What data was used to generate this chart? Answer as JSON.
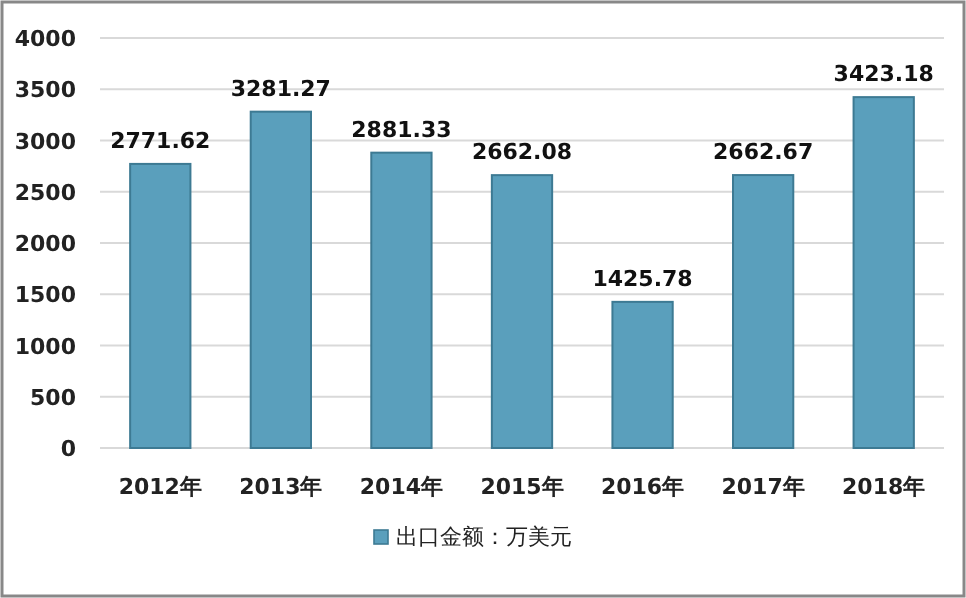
{
  "chart_data": {
    "type": "bar",
    "categories": [
      "2012年",
      "2013年",
      "2014年",
      "2015年",
      "2016年",
      "2017年",
      "2018年"
    ],
    "series": [
      {
        "name": "出口金额：万美元",
        "color": "#5a9fbc",
        "values": [
          2771.62,
          3281.27,
          2881.33,
          2662.08,
          1425.78,
          2662.67,
          3423.18
        ]
      }
    ],
    "ylim": [
      0,
      4000
    ],
    "yticks": [
      0,
      500,
      1000,
      1500,
      2000,
      2500,
      3000,
      3500,
      4000
    ],
    "grid": "y",
    "legend": "bottom",
    "data_labels": true
  }
}
